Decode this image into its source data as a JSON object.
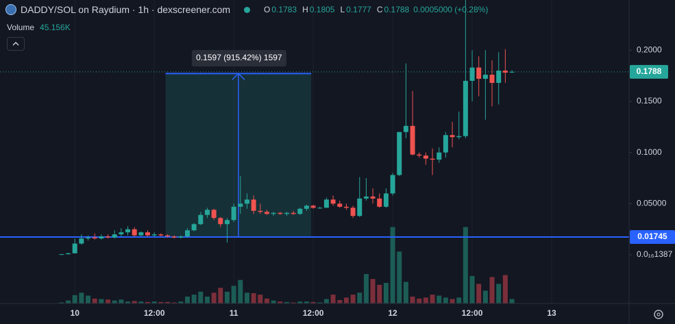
{
  "chart_data": {
    "type": "candlestick",
    "title": "DADDY/SOL on Raydium · 1h · dexscreener.com",
    "ohlc_legend": [
      {
        "key": "O",
        "value": 0.1783
      },
      {
        "key": "H",
        "value": 0.1805
      },
      {
        "key": "L",
        "value": 0.1777
      },
      {
        "key": "C",
        "value": 0.1788
      }
    ],
    "change_label": "0.0005000 (+0.28%)",
    "volume_legend": {
      "name": "Volume",
      "value": 45156,
      "value_label": "45.156K"
    },
    "open": [
      0.0002,
      0.0006,
      0.0015,
      0.011,
      0.016,
      0.017,
      0.016,
      0.018,
      0.017,
      0.02,
      0.022,
      0.025,
      0.019,
      0.022,
      0.019,
      0.02,
      0.019,
      0.018,
      0.017,
      0.018,
      0.024,
      0.03,
      0.039,
      0.044,
      0.036,
      0.03,
      0.034,
      0.047,
      0.05,
      0.054,
      0.043,
      0.042,
      0.04,
      0.041,
      0.04,
      0.041,
      0.04,
      0.045,
      0.048,
      0.046,
      0.046,
      0.054,
      0.05,
      0.047,
      0.046,
      0.038,
      0.055,
      0.057,
      0.055,
      0.047,
      0.06,
      0.078,
      0.12,
      0.126,
      0.098,
      0.097,
      0.094,
      0.093,
      0.1,
      0.117,
      0.115,
      0.116,
      0.17,
      0.183,
      0.172,
      0.176,
      0.168,
      0.18,
      0.1783
    ],
    "high": [
      0.0008,
      0.002,
      0.016,
      0.02,
      0.019,
      0.021,
      0.02,
      0.02,
      0.024,
      0.026,
      0.028,
      0.027,
      0.023,
      0.024,
      0.022,
      0.021,
      0.02,
      0.019,
      0.019,
      0.026,
      0.031,
      0.042,
      0.046,
      0.045,
      0.037,
      0.036,
      0.05,
      0.077,
      0.06,
      0.058,
      0.05,
      0.044,
      0.042,
      0.042,
      0.042,
      0.043,
      0.046,
      0.049,
      0.049,
      0.047,
      0.056,
      0.058,
      0.053,
      0.05,
      0.048,
      0.076,
      0.075,
      0.065,
      0.06,
      0.065,
      0.08,
      0.12,
      0.187,
      0.16,
      0.1,
      0.1,
      0.104,
      0.105,
      0.12,
      0.13,
      0.14,
      0.25,
      0.2,
      0.194,
      0.2,
      0.19,
      0.198,
      0.201,
      0.1805
    ],
    "low": [
      0,
      0.0004,
      0.0015,
      0.01,
      0.014,
      0.015,
      0.015,
      0.016,
      0.016,
      0.018,
      0.019,
      0.018,
      0.018,
      0.018,
      0.018,
      0.018,
      0.017,
      0.016,
      0.016,
      0.017,
      0.023,
      0.029,
      0.036,
      0.034,
      0.027,
      0.012,
      0.032,
      0.04,
      0.045,
      0.04,
      0.04,
      0.039,
      0.038,
      0.039,
      0.038,
      0.039,
      0.039,
      0.043,
      0.045,
      0.045,
      0.046,
      0.048,
      0.046,
      0.044,
      0.036,
      0.037,
      0.053,
      0.05,
      0.046,
      0.046,
      0.058,
      0.077,
      0.114,
      0.097,
      0.095,
      0.088,
      0.078,
      0.09,
      0.095,
      0.105,
      0.113,
      0.114,
      0.15,
      0.155,
      0.132,
      0.145,
      0.147,
      0.168,
      0.1777
    ],
    "close": [
      0.0006,
      0.0015,
      0.011,
      0.016,
      0.017,
      0.016,
      0.018,
      0.017,
      0.02,
      0.022,
      0.025,
      0.019,
      0.022,
      0.019,
      0.02,
      0.019,
      0.018,
      0.017,
      0.018,
      0.024,
      0.03,
      0.039,
      0.044,
      0.036,
      0.03,
      0.034,
      0.047,
      0.05,
      0.054,
      0.043,
      0.042,
      0.04,
      0.041,
      0.04,
      0.041,
      0.04,
      0.045,
      0.048,
      0.046,
      0.046,
      0.054,
      0.05,
      0.047,
      0.046,
      0.038,
      0.055,
      0.057,
      0.055,
      0.047,
      0.06,
      0.078,
      0.12,
      0.126,
      0.098,
      0.097,
      0.094,
      0.093,
      0.1,
      0.117,
      0.115,
      0.116,
      0.17,
      0.183,
      0.172,
      0.176,
      0.168,
      0.18,
      0.178,
      0.1788
    ],
    "volume": [
      10000,
      30000,
      85000,
      110000,
      80000,
      50000,
      45000,
      40000,
      30000,
      40000,
      20000,
      25000,
      20000,
      15000,
      20000,
      15000,
      15000,
      10000,
      20000,
      70000,
      90000,
      120000,
      70000,
      110000,
      160000,
      120000,
      180000,
      240000,
      110000,
      105000,
      90000,
      50000,
      30000,
      20000,
      15000,
      10000,
      20000,
      20000,
      15000,
      10000,
      45000,
      90000,
      35000,
      60000,
      90000,
      110000,
      300000,
      250000,
      190000,
      210000,
      780000,
      530000,
      220000,
      70000,
      50000,
      60000,
      90000,
      80000,
      60000,
      45000,
      60000,
      780000,
      280000,
      200000,
      130000,
      270000,
      200000,
      290000,
      45156
    ],
    "up_color": "#26a69a",
    "down_color": "#ef5350",
    "volume_up_color": "#1c5d56",
    "volume_down_color": "#7b2f3a",
    "xlim": [
      -9.3,
      85.9
    ],
    "xticks": [
      {
        "value": 2,
        "label": "10"
      },
      {
        "value": 14,
        "label": "12:00"
      },
      {
        "value": 26,
        "label": "11"
      },
      {
        "value": 38,
        "label": "12:00"
      },
      {
        "value": 50,
        "label": "12"
      },
      {
        "value": 62,
        "label": "12:00"
      },
      {
        "value": 74,
        "label": "13"
      }
    ],
    "ylim": [
      -0.0475,
      0.249
    ],
    "yticks": [
      {
        "value": 1.387e-17,
        "label": "0.0₁₆1387"
      },
      {
        "value": 0.05,
        "label": "0.05000"
      },
      {
        "value": 0.1,
        "label": "0.1000"
      },
      {
        "value": 0.15,
        "label": "0.1500"
      },
      {
        "value": 0.2,
        "label": "0.2000"
      }
    ],
    "volume_lim": [
      0,
      1000000
    ],
    "grid": true,
    "price_line": {
      "value": 0.1788,
      "color": "#26a69a"
    },
    "horizontal_line": {
      "value": 0.01745,
      "color": "#2962ff"
    },
    "measure": {
      "x": [
        15.7,
        37.7
      ],
      "from": 0.01745,
      "to": 0.17715,
      "label": "0.1597 (915.42%) 1597"
    }
  }
}
